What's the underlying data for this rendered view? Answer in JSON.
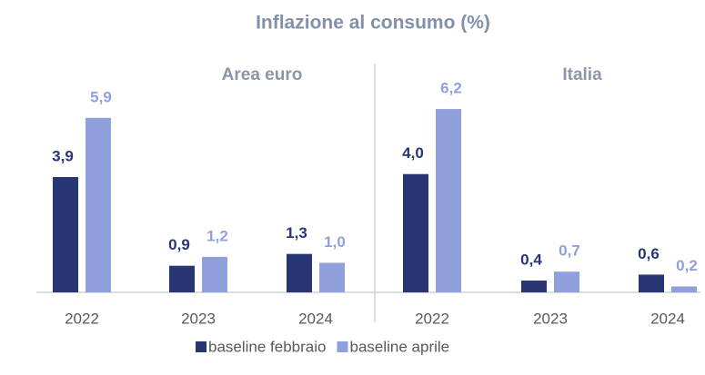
{
  "title": "Inflazione al consumo (%)",
  "chart_data": [
    {
      "type": "bar",
      "title": "Area euro",
      "categories": [
        "2022",
        "2023",
        "2024"
      ],
      "ylim": [
        0,
        7
      ],
      "series": [
        {
          "name": "baseline febbraio",
          "color": "#283673",
          "values": [
            3.9,
            0.9,
            1.3
          ],
          "value_labels": [
            "3,9",
            "0,9",
            "1,3"
          ]
        },
        {
          "name": "baseline aprile",
          "color": "#8fa0dc",
          "values": [
            5.9,
            1.2,
            1.0
          ],
          "value_labels": [
            "5,9",
            "1,2",
            "1,0"
          ]
        }
      ]
    },
    {
      "type": "bar",
      "title": "Italia",
      "categories": [
        "2022",
        "2023",
        "2024"
      ],
      "ylim": [
        0,
        7
      ],
      "series": [
        {
          "name": "baseline febbraio",
          "color": "#283673",
          "values": [
            4.0,
            0.4,
            0.6
          ],
          "value_labels": [
            "4,0",
            "0,4",
            "0,6"
          ]
        },
        {
          "name": "baseline aprile",
          "color": "#8fa0dc",
          "values": [
            6.2,
            0.7,
            0.2
          ],
          "value_labels": [
            "6,2",
            "0,7",
            "0,2"
          ]
        }
      ]
    }
  ]
}
